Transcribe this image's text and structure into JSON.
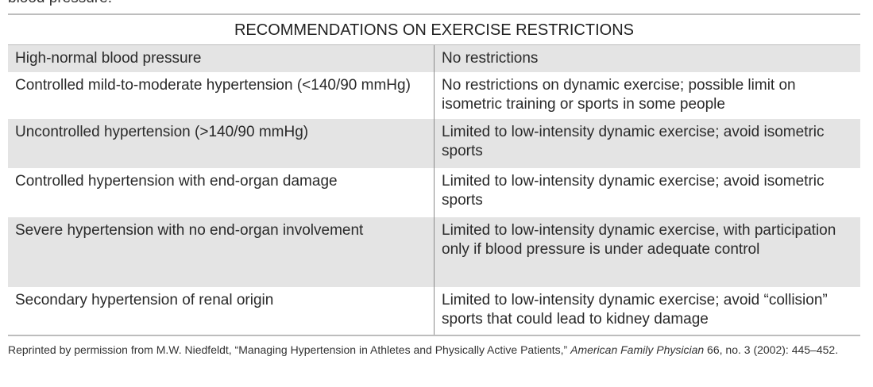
{
  "clipped_text": "blood pressure.",
  "table": {
    "title": "RECOMMENDATIONS ON EXERCISE RESTRICTIONS",
    "rows": [
      [
        "High-normal blood pressure",
        "No restrictions"
      ],
      [
        "Controlled mild-to-moderate hypertension (<140/90 mmHg)",
        "No restrictions on dynamic exercise; possible limit on isometric training or sports in some people"
      ],
      [
        "Uncontrolled hypertension (>140/90 mmHg)",
        "Limited to low-intensity dynamic exercise; avoid isometric sports"
      ],
      [
        "Controlled hypertension with end-organ damage",
        "Limited to low-intensity dynamic exercise; avoid isometric sports"
      ],
      [
        "Severe hypertension with no end-organ involvement",
        "Limited to low-intensity dynamic exercise, with participation only if blood pressure is under adequate control"
      ],
      [
        "Secondary hypertension of renal origin",
        "Limited to low-intensity dynamic exercise; avoid “collision” sports that could lead to kidney damage"
      ]
    ]
  },
  "footnote": {
    "before": "Reprinted by permission from M.W. Niedfeldt, “Managing Hypertension in Athletes and Physically Active Patients,” ",
    "journal": "American Family Physician",
    "after": " 66, no. 3 (2002): 445–452."
  }
}
